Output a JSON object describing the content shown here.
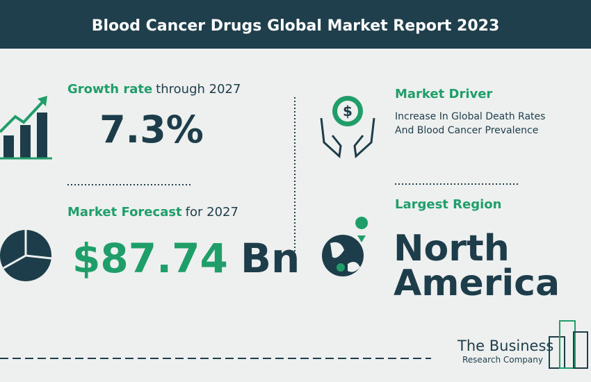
{
  "header": {
    "title": "Blood Cancer Drugs Global Market Report 2023"
  },
  "growth": {
    "label_bold": "Growth rate",
    "label_rest": "through 2027",
    "value": "7.3%"
  },
  "forecast": {
    "label_bold": "Market Forecast",
    "label_rest": "for 2027",
    "value": "$87.74",
    "unit": "Bn"
  },
  "driver": {
    "title": "Market Driver",
    "lines": [
      "Increase In Global Death Rates",
      "And Blood Cancer Prevalence"
    ]
  },
  "region": {
    "title": "Largest Region",
    "lines": [
      "North",
      "America"
    ]
  },
  "logo": {
    "name": "The Business",
    "tagline": "Research Company"
  }
}
